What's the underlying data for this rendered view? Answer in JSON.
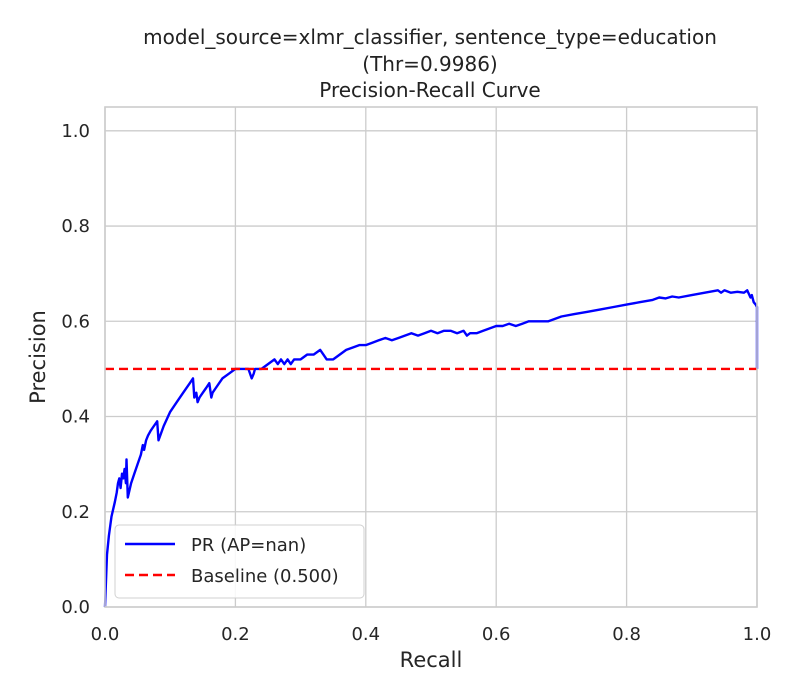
{
  "chart_data": {
    "type": "line",
    "title_lines": [
      "model_source=xlmr_classifier, sentence_type=education",
      "(Thr=0.9986)",
      "Precision-Recall Curve"
    ],
    "xlabel": "Recall",
    "ylabel": "Precision",
    "xlim": [
      0.0,
      1.0
    ],
    "ylim": [
      0.0,
      1.05
    ],
    "xticks": [
      "0.0",
      "0.2",
      "0.4",
      "0.6",
      "0.8",
      "1.0"
    ],
    "yticks": [
      "0.0",
      "0.2",
      "0.4",
      "0.6",
      "0.8",
      "1.0"
    ],
    "grid": true,
    "legend_position": "lower-left",
    "series": [
      {
        "name": "PR (AP=nan)",
        "color": "#0000ff",
        "style": "solid",
        "x": [
          0.0,
          0.003,
          0.006,
          0.01,
          0.015,
          0.018,
          0.02,
          0.022,
          0.024,
          0.026,
          0.028,
          0.03,
          0.032,
          0.033,
          0.035,
          0.04,
          0.045,
          0.05,
          0.055,
          0.058,
          0.06,
          0.063,
          0.066,
          0.07,
          0.075,
          0.08,
          0.082,
          0.09,
          0.1,
          0.11,
          0.12,
          0.13,
          0.135,
          0.137,
          0.14,
          0.142,
          0.145,
          0.15,
          0.155,
          0.16,
          0.163,
          0.165,
          0.17,
          0.18,
          0.19,
          0.2,
          0.21,
          0.22,
          0.225,
          0.228,
          0.23,
          0.24,
          0.25,
          0.26,
          0.265,
          0.27,
          0.275,
          0.28,
          0.285,
          0.29,
          0.3,
          0.31,
          0.32,
          0.33,
          0.335,
          0.34,
          0.345,
          0.35,
          0.36,
          0.37,
          0.38,
          0.39,
          0.4,
          0.41,
          0.42,
          0.43,
          0.44,
          0.45,
          0.46,
          0.47,
          0.48,
          0.49,
          0.5,
          0.51,
          0.52,
          0.53,
          0.54,
          0.55,
          0.555,
          0.56,
          0.57,
          0.58,
          0.59,
          0.6,
          0.61,
          0.62,
          0.63,
          0.64,
          0.65,
          0.66,
          0.67,
          0.68,
          0.7,
          0.72,
          0.74,
          0.76,
          0.78,
          0.8,
          0.82,
          0.84,
          0.85,
          0.86,
          0.87,
          0.88,
          0.9,
          0.92,
          0.94,
          0.945,
          0.95,
          0.96,
          0.97,
          0.98,
          0.985,
          0.99,
          0.992,
          0.995,
          0.998,
          1.0,
          1.0
        ],
        "y": [
          0.0,
          0.11,
          0.15,
          0.19,
          0.22,
          0.24,
          0.26,
          0.27,
          0.25,
          0.28,
          0.27,
          0.29,
          0.26,
          0.31,
          0.23,
          0.26,
          0.28,
          0.3,
          0.32,
          0.34,
          0.33,
          0.35,
          0.36,
          0.37,
          0.38,
          0.39,
          0.35,
          0.38,
          0.41,
          0.43,
          0.45,
          0.47,
          0.48,
          0.44,
          0.45,
          0.43,
          0.44,
          0.45,
          0.46,
          0.47,
          0.44,
          0.45,
          0.46,
          0.48,
          0.49,
          0.5,
          0.5,
          0.5,
          0.48,
          0.49,
          0.5,
          0.5,
          0.51,
          0.52,
          0.51,
          0.52,
          0.51,
          0.52,
          0.51,
          0.52,
          0.52,
          0.53,
          0.53,
          0.54,
          0.53,
          0.52,
          0.52,
          0.52,
          0.53,
          0.54,
          0.545,
          0.55,
          0.55,
          0.555,
          0.56,
          0.565,
          0.56,
          0.565,
          0.57,
          0.575,
          0.57,
          0.575,
          0.58,
          0.575,
          0.58,
          0.58,
          0.575,
          0.58,
          0.57,
          0.575,
          0.575,
          0.58,
          0.585,
          0.59,
          0.59,
          0.595,
          0.59,
          0.595,
          0.6,
          0.6,
          0.6,
          0.6,
          0.61,
          0.615,
          0.62,
          0.625,
          0.63,
          0.635,
          0.64,
          0.645,
          0.65,
          0.648,
          0.652,
          0.65,
          0.655,
          0.66,
          0.665,
          0.66,
          0.665,
          0.66,
          0.662,
          0.66,
          0.665,
          0.65,
          0.655,
          0.64,
          0.635,
          0.63,
          0.5
        ]
      },
      {
        "name": "Baseline (0.500)",
        "color": "#ff0000",
        "style": "dashed",
        "x": [
          0.0,
          1.0
        ],
        "y": [
          0.5,
          0.5
        ]
      }
    ]
  }
}
